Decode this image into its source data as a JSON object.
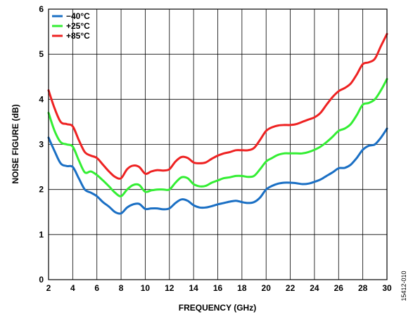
{
  "chart_data": {
    "type": "line",
    "title": "",
    "xlabel": "FREQUENCY (GHz)",
    "ylabel": "NOISE FIGURE (dB)",
    "xlim": [
      2,
      30
    ],
    "ylim": [
      0,
      6
    ],
    "xticks": [
      2,
      4,
      6,
      8,
      10,
      12,
      14,
      16,
      18,
      20,
      22,
      24,
      26,
      28,
      30
    ],
    "yticks": [
      0,
      1,
      2,
      3,
      4,
      5,
      6
    ],
    "grid": true,
    "legend_position": "top-left",
    "figure_id": "15412-010",
    "series": [
      {
        "name": "−40°C",
        "color": "#1a6fc4",
        "x": [
          2,
          2.5,
          3,
          3.5,
          4,
          4.5,
          5,
          5.5,
          6,
          6.5,
          7,
          7.5,
          8,
          8.5,
          9,
          9.5,
          10,
          10.5,
          11,
          11.5,
          12,
          12.5,
          13,
          13.5,
          14,
          14.5,
          15,
          15.5,
          16,
          16.5,
          17,
          17.5,
          18,
          18.5,
          19,
          19.5,
          20,
          20.5,
          21,
          21.5,
          22,
          22.5,
          23,
          23.5,
          24,
          24.5,
          25,
          25.5,
          26,
          26.5,
          27,
          27.5,
          28,
          28.5,
          29,
          29.5,
          30
        ],
        "y": [
          3.15,
          2.85,
          2.58,
          2.52,
          2.5,
          2.25,
          2.0,
          1.93,
          1.85,
          1.72,
          1.62,
          1.5,
          1.47,
          1.6,
          1.67,
          1.68,
          1.57,
          1.58,
          1.58,
          1.56,
          1.58,
          1.7,
          1.78,
          1.75,
          1.65,
          1.6,
          1.6,
          1.63,
          1.67,
          1.7,
          1.73,
          1.75,
          1.72,
          1.7,
          1.72,
          1.82,
          2.0,
          2.08,
          2.13,
          2.15,
          2.15,
          2.14,
          2.12,
          2.13,
          2.17,
          2.22,
          2.3,
          2.38,
          2.47,
          2.48,
          2.55,
          2.7,
          2.88,
          2.97,
          3.0,
          3.15,
          3.35
        ]
      },
      {
        "name": "+25°C",
        "color": "#33ee33",
        "x": [
          2,
          2.5,
          3,
          3.5,
          4,
          4.5,
          5,
          5.5,
          6,
          6.5,
          7,
          7.5,
          8,
          8.5,
          9,
          9.5,
          10,
          10.5,
          11,
          11.5,
          12,
          12.5,
          13,
          13.5,
          14,
          14.5,
          15,
          15.5,
          16,
          16.5,
          17,
          17.5,
          18,
          18.5,
          19,
          19.5,
          20,
          20.5,
          21,
          21.5,
          22,
          22.5,
          23,
          23.5,
          24,
          24.5,
          25,
          25.5,
          26,
          26.5,
          27,
          27.5,
          28,
          28.5,
          29,
          29.5,
          30
        ],
        "y": [
          3.7,
          3.3,
          3.05,
          3.0,
          2.95,
          2.65,
          2.38,
          2.4,
          2.32,
          2.2,
          2.07,
          1.93,
          1.85,
          2.0,
          2.1,
          2.1,
          1.95,
          1.98,
          2.0,
          2.0,
          2.0,
          2.15,
          2.27,
          2.25,
          2.12,
          2.07,
          2.08,
          2.15,
          2.2,
          2.25,
          2.27,
          2.3,
          2.3,
          2.28,
          2.3,
          2.45,
          2.62,
          2.7,
          2.77,
          2.8,
          2.8,
          2.8,
          2.8,
          2.83,
          2.88,
          2.95,
          3.05,
          3.17,
          3.3,
          3.35,
          3.45,
          3.65,
          3.88,
          3.92,
          4.0,
          4.2,
          4.45
        ]
      },
      {
        "name": "+85°C",
        "color": "#ee2222",
        "x": [
          2,
          2.5,
          3,
          3.5,
          4,
          4.5,
          5,
          5.5,
          6,
          6.5,
          7,
          7.5,
          8,
          8.5,
          9,
          9.5,
          10,
          10.5,
          11,
          11.5,
          12,
          12.5,
          13,
          13.5,
          14,
          14.5,
          15,
          15.5,
          16,
          16.5,
          17,
          17.5,
          18,
          18.5,
          19,
          19.5,
          20,
          20.5,
          21,
          21.5,
          22,
          22.5,
          23,
          23.5,
          24,
          24.5,
          25,
          25.5,
          26,
          26.5,
          27,
          27.5,
          28,
          28.5,
          29,
          29.5,
          30
        ],
        "y": [
          4.2,
          3.8,
          3.5,
          3.45,
          3.4,
          3.1,
          2.83,
          2.75,
          2.7,
          2.55,
          2.4,
          2.28,
          2.25,
          2.45,
          2.53,
          2.5,
          2.35,
          2.4,
          2.43,
          2.42,
          2.45,
          2.62,
          2.72,
          2.7,
          2.6,
          2.58,
          2.6,
          2.68,
          2.75,
          2.8,
          2.83,
          2.87,
          2.87,
          2.87,
          2.92,
          3.1,
          3.3,
          3.38,
          3.42,
          3.43,
          3.43,
          3.45,
          3.5,
          3.55,
          3.6,
          3.7,
          3.88,
          4.05,
          4.18,
          4.25,
          4.35,
          4.55,
          4.78,
          4.82,
          4.9,
          5.18,
          5.45
        ]
      }
    ]
  }
}
